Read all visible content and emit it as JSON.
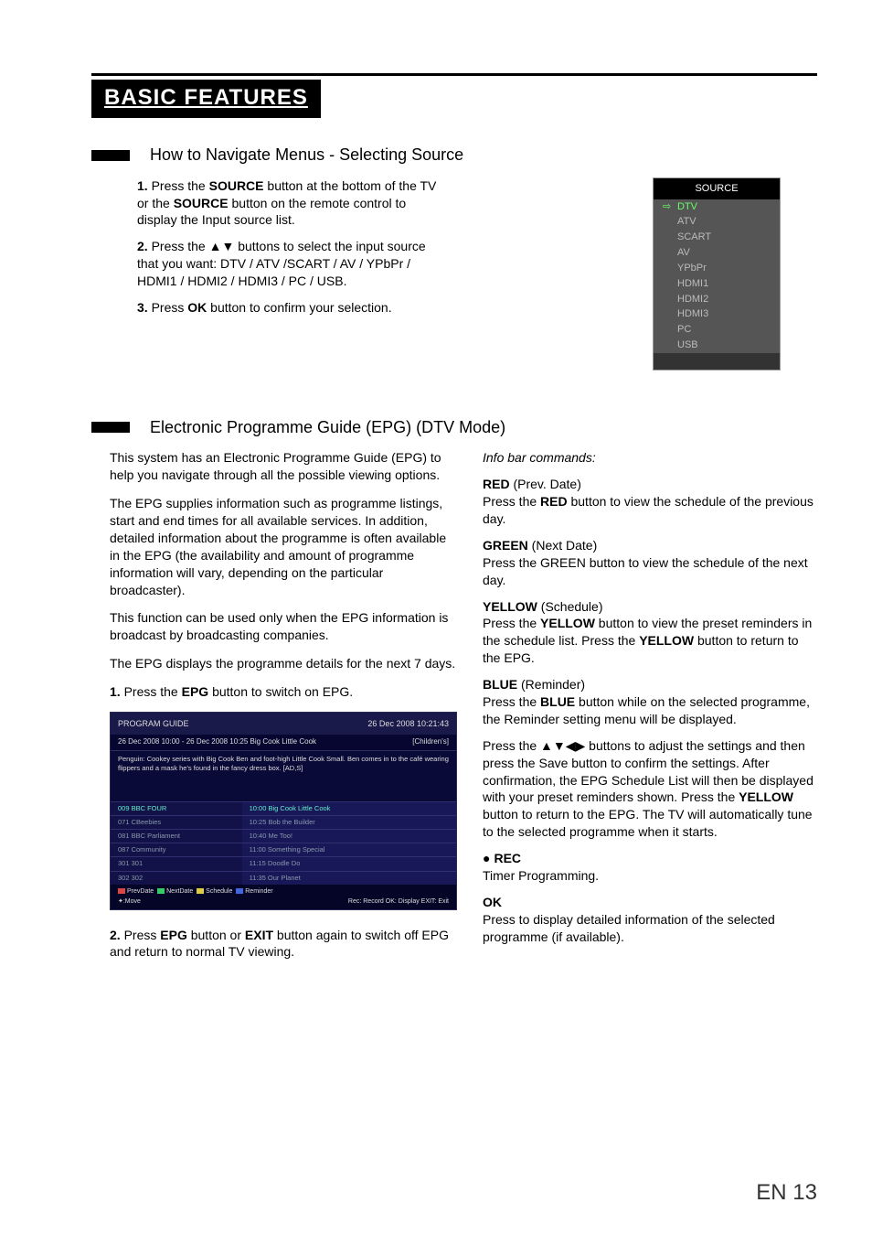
{
  "page_title": "BASIC FEATURES",
  "section1": {
    "heading": "How to Navigate Menus - Selecting Source",
    "steps": [
      {
        "n": "1.",
        "html": "Press the <b>SOURCE</b> button at the bottom of the TV or the <b>SOURCE</b> button on the remote control to display the Input source list."
      },
      {
        "n": "2.",
        "html": "Press the ▲▼ buttons to select the input source that you want: DTV / ATV /SCART / AV / YPbPr / HDMI1 / HDMI2 / HDMI3 / PC / USB."
      },
      {
        "n": "3.",
        "html": "Press <b>OK</b> button to confirm your selection."
      }
    ],
    "source_box": {
      "title": "SOURCE",
      "items": [
        "DTV",
        "ATV",
        "SCART",
        "AV",
        "YPbPr",
        "HDMI1",
        "HDMI2",
        "HDMI3",
        "PC",
        "USB"
      ],
      "selected_index": 0,
      "bg": "#555555",
      "sel_color": "#66ff66",
      "text_color": "#bbbbbb"
    }
  },
  "section2": {
    "heading": "Electronic Programme Guide (EPG) (DTV Mode)",
    "left_paras": [
      "This system has an Electronic Programme Guide (EPG) to help you navigate through all the possible viewing options.",
      "The EPG supplies information such as programme listings, start and end times for all available services. In addition, detailed information about the programme is often available in the EPG (the availability and amount of programme information will vary, depending on the particular broadcaster).",
      "This function can be used only when the EPG information is broadcast by broadcasting companies.",
      "The EPG displays the programme details for the next 7 days."
    ],
    "left_step1": {
      "n": "1.",
      "html": "Press the <b>EPG</b> button to switch on EPG."
    },
    "left_step2": {
      "n": "2.",
      "html": "Press <b>EPG</b> button or <b>EXIT</b> button again to switch off EPG and return to normal TV viewing."
    },
    "epg_mock": {
      "header_left": "PROGRAM GUIDE",
      "header_right": "26 Dec 2008 10:21:43",
      "desc_head_left": "26 Dec 2008 10:00 - 26 Dec 2008 10:25 Big Cook Little Cook",
      "desc_head_right": "[Children's]",
      "desc_body": "Penguin: Cookey series with Big Cook Ben and foot-high Little Cook Small. Ben comes in to the café wearing flippers and a mask he's found in the fancy dress box. [AD,S]",
      "rows": [
        [
          "009 BBC FOUR",
          "10:00 Big Cook Little Cook"
        ],
        [
          "071 CBeebies",
          "10:25 Bob the Builder"
        ],
        [
          "081 BBC Parliament",
          "10:40 Me Too!"
        ],
        [
          "087 Community",
          "11:00 Something Special"
        ],
        [
          "301 301",
          "11:15 Doodle Do"
        ],
        [
          "302 302",
          "11:35 Our Planet"
        ]
      ],
      "selected_row": 0,
      "foot_left_items": [
        {
          "chip": "r",
          "label": "PrevDate"
        },
        {
          "chip": "g",
          "label": "NextDate"
        },
        {
          "chip": "y",
          "label": "Schedule"
        },
        {
          "chip": "b",
          "label": "Reminder"
        }
      ],
      "foot_bottom_left": "✦:Move",
      "foot_bottom_right": "Rec: Record  OK: Display  EXIT: Exit",
      "colors": {
        "bg": "#1a1a4a",
        "dark": "#0a0a38",
        "row": "#181858",
        "sel": "#66eecc"
      }
    },
    "right": {
      "info_bar": "Info bar commands:",
      "blocks": [
        {
          "title": "<b>RED</b> (Prev. Date)",
          "body": "Press the <b>RED</b> button to view the schedule of the previous day."
        },
        {
          "title": "<b>GREEN</b> (Next Date)",
          "body": "Press the GREEN button to view the schedule of the next day."
        },
        {
          "title": "<b>YELLOW</b> (Schedule)",
          "body": "Press the <b>YELLOW</b> button to view the preset reminders in the schedule list. Press the <b>YELLOW</b> button to return to the EPG."
        },
        {
          "title": "<b>BLUE</b> (Reminder)",
          "body": "Press the <b>BLUE</b> button while on the selected programme, the Reminder setting menu will be displayed."
        }
      ],
      "nav_para": "Press the ▲▼◀▶ buttons to adjust the settings and then press the Save button to confirm the settings. After confirmation, the EPG Schedule List will then be displayed with your preset reminders shown. Press the <b>YELLOW</b> button to return to the EPG. The TV will automatically tune to the selected programme when it starts.",
      "rec_title": "REC",
      "rec_body": "Timer Programming.",
      "ok_title": "OK",
      "ok_body": "Press to display detailed information of the selected programme (if available)."
    }
  },
  "page_number": "EN 13"
}
